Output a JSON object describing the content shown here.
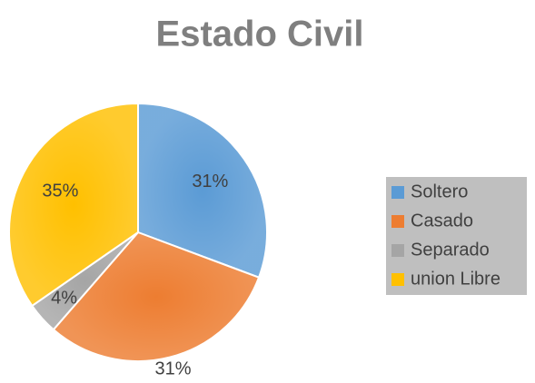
{
  "chart_data": {
    "type": "pie",
    "title": "Estado Civil",
    "categories": [
      "Soltero",
      "Casado",
      "Separado",
      "union Libre"
    ],
    "values": [
      31,
      31,
      4,
      35
    ],
    "value_labels": [
      "31%",
      "31%",
      "4%",
      "35%"
    ],
    "colors": [
      "#5b9bd5",
      "#ed7d31",
      "#a5a5a5",
      "#ffc000"
    ],
    "legend": "right"
  }
}
